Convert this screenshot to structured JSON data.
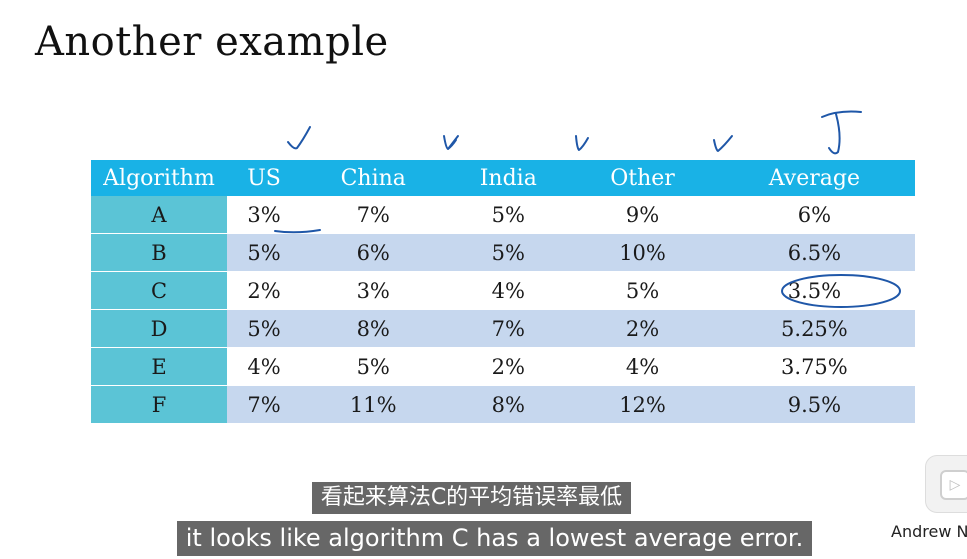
{
  "slide": {
    "title": "Another example"
  },
  "table": {
    "headers": [
      "Algorithm",
      "US",
      "China",
      "India",
      "Other",
      "Average"
    ],
    "rows": [
      {
        "algorithm": "A",
        "values": [
          "3%",
          "7%",
          "5%",
          "9%",
          "6%"
        ]
      },
      {
        "algorithm": "B",
        "values": [
          "5%",
          "6%",
          "5%",
          "10%",
          "6.5%"
        ]
      },
      {
        "algorithm": "C",
        "values": [
          "2%",
          "3%",
          "4%",
          "5%",
          "3.5%"
        ]
      },
      {
        "algorithm": "D",
        "values": [
          "5%",
          "8%",
          "7%",
          "2%",
          "5.25%"
        ]
      },
      {
        "algorithm": "E",
        "values": [
          "4%",
          "5%",
          "2%",
          "4%",
          "3.75%"
        ]
      },
      {
        "algorithm": "F",
        "values": [
          "7%",
          "11%",
          "8%",
          "12%",
          "9.5%"
        ]
      }
    ]
  },
  "annotations": {
    "ink_color": "#1f57a8",
    "checkmark_columns": [
      "US",
      "China",
      "India",
      "Other"
    ],
    "underlined_cell": "3%",
    "circled_cell": "3.5%"
  },
  "subtitles": {
    "chinese": "看起来算法C的平均错误率最低",
    "english": "it looks like algorithm C has a lowest average error."
  },
  "presenter": {
    "name": "Andrew N"
  },
  "colors": {
    "header_bg": "#19b2e6",
    "algorithm_col_bg": "#5bc4d6",
    "alt_row_bg": "#c6d7ee"
  }
}
